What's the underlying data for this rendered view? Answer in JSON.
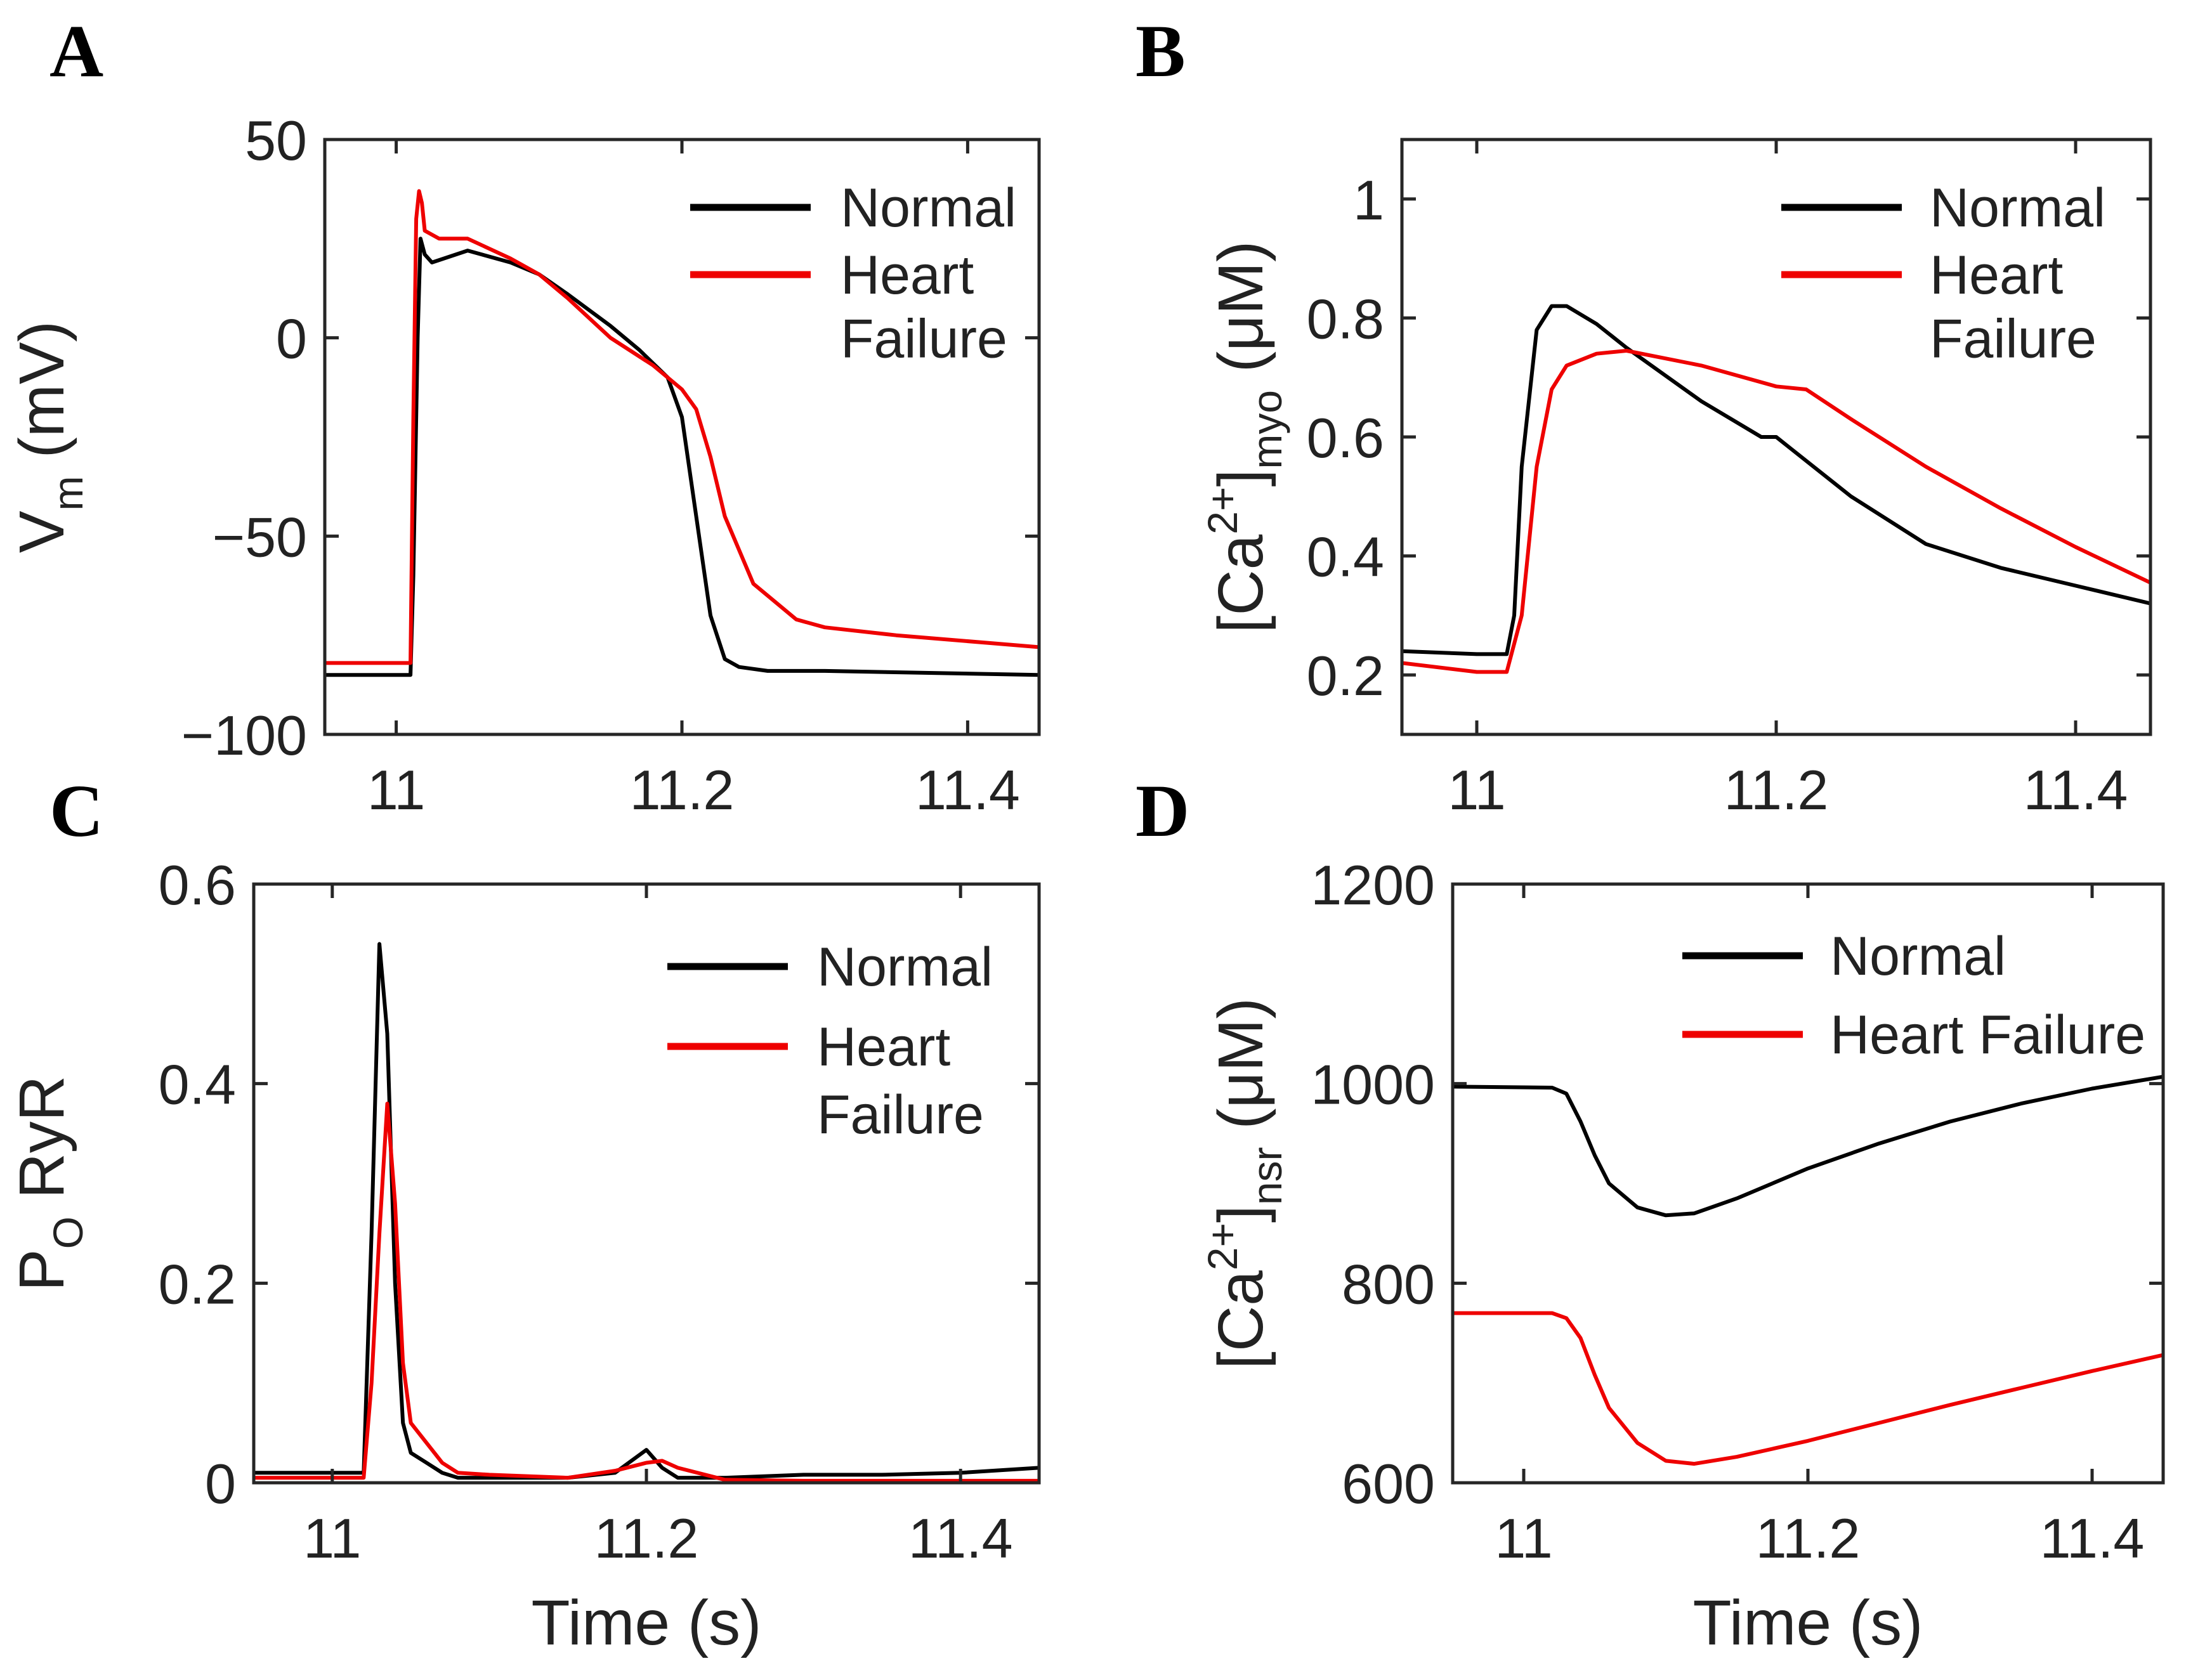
{
  "chart_data": [
    {
      "panel": "A",
      "type": "line",
      "ylabel_main": "V",
      "ylabel_sub": "m",
      "ylabel_rest": " (mV)",
      "xlabel": "",
      "xlim": [
        10.95,
        11.45
      ],
      "ylim": [
        -100,
        50
      ],
      "xticks": [
        11,
        11.2,
        11.4
      ],
      "xtick_labels": [
        "11",
        "11.2",
        "11.4"
      ],
      "yticks": [
        -100,
        -50,
        0,
        50
      ],
      "ytick_labels": [
        "−100",
        "−50",
        "0",
        "50"
      ],
      "legend": [
        "Normal",
        "Heart",
        "Failure"
      ],
      "series": [
        {
          "name": "Normal",
          "color": "#000000",
          "x": [
            10.95,
            11.01,
            11.012,
            11.015,
            11.017,
            11.02,
            11.025,
            11.05,
            11.08,
            11.1,
            11.12,
            11.15,
            11.17,
            11.19,
            11.2,
            11.21,
            11.22,
            11.23,
            11.24,
            11.26,
            11.3,
            11.45
          ],
          "y": [
            -85,
            -85,
            -60,
            0,
            25,
            21,
            19,
            22,
            19,
            16,
            11,
            3,
            -3,
            -10,
            -20,
            -45,
            -70,
            -81,
            -83,
            -84,
            -84,
            -85
          ]
        },
        {
          "name": "Heart Failure",
          "color": "#ee0000",
          "x": [
            10.95,
            11.01,
            11.012,
            11.014,
            11.016,
            11.018,
            11.02,
            11.03,
            11.05,
            11.08,
            11.1,
            11.12,
            11.15,
            11.18,
            11.2,
            11.21,
            11.22,
            11.23,
            11.25,
            11.28,
            11.3,
            11.35,
            11.45
          ],
          "y": [
            -82,
            -82,
            -20,
            30,
            37,
            34,
            27,
            25,
            25,
            20,
            16,
            10,
            0,
            -7,
            -13,
            -18,
            -30,
            -45,
            -62,
            -71,
            -73,
            -75,
            -78
          ]
        }
      ]
    },
    {
      "panel": "B",
      "type": "line",
      "ylabel_main": "[Ca",
      "ylabel_sup": "2+",
      "ylabel_mid": "]",
      "ylabel_sub": "myo",
      "ylabel_rest": " (μM)",
      "xlabel": "",
      "xlim": [
        10.95,
        11.45
      ],
      "ylim": [
        0.1,
        1.1
      ],
      "xticks": [
        11,
        11.2,
        11.4
      ],
      "xtick_labels": [
        "11",
        "11.2",
        "11.4"
      ],
      "yticks": [
        0.2,
        0.4,
        0.6,
        0.8,
        1
      ],
      "ytick_labels": [
        "0.2",
        "0.4",
        "0.6",
        "0.8",
        "1"
      ],
      "legend": [
        "Normal",
        "Heart",
        "Failure"
      ],
      "series": [
        {
          "name": "Normal",
          "color": "#000000",
          "x": [
            10.95,
            11.0,
            11.02,
            11.025,
            11.03,
            11.04,
            11.05,
            11.06,
            11.08,
            11.1,
            11.15,
            11.19,
            11.2,
            11.21,
            11.25,
            11.3,
            11.35,
            11.4,
            11.45
          ],
          "y": [
            0.24,
            0.235,
            0.235,
            0.3,
            0.55,
            0.78,
            0.82,
            0.82,
            0.79,
            0.75,
            0.66,
            0.6,
            0.6,
            0.58,
            0.5,
            0.42,
            0.38,
            0.35,
            0.32
          ]
        },
        {
          "name": "Heart Failure",
          "color": "#ee0000",
          "x": [
            10.95,
            11.0,
            11.02,
            11.03,
            11.04,
            11.05,
            11.06,
            11.08,
            11.1,
            11.15,
            11.2,
            11.22,
            11.25,
            11.3,
            11.35,
            11.4,
            11.45
          ],
          "y": [
            0.22,
            0.205,
            0.205,
            0.3,
            0.55,
            0.68,
            0.72,
            0.74,
            0.745,
            0.72,
            0.685,
            0.68,
            0.63,
            0.55,
            0.48,
            0.415,
            0.355
          ]
        }
      ]
    },
    {
      "panel": "C",
      "type": "line",
      "ylabel_main": "P",
      "ylabel_sub": "O",
      "ylabel_rest": " RyR",
      "xlabel": "Time (s)",
      "xlim": [
        10.95,
        11.45
      ],
      "ylim": [
        0,
        0.6
      ],
      "xticks": [
        11,
        11.2,
        11.4
      ],
      "xtick_labels": [
        "11",
        "11.2",
        "11.4"
      ],
      "yticks": [
        0,
        0.2,
        0.4,
        0.6
      ],
      "ytick_labels": [
        "0",
        "0.2",
        "0.4",
        "0.6"
      ],
      "legend": [
        "Normal",
        "Heart",
        "Failure"
      ],
      "series": [
        {
          "name": "Normal",
          "color": "#000000",
          "x": [
            10.95,
            11.0,
            11.02,
            11.025,
            11.03,
            11.035,
            11.04,
            11.045,
            11.05,
            11.06,
            11.07,
            11.08,
            11.1,
            11.15,
            11.18,
            11.2,
            11.21,
            11.22,
            11.25,
            11.3,
            11.35,
            11.4,
            11.45
          ],
          "y": [
            0.01,
            0.01,
            0.01,
            0.25,
            0.54,
            0.45,
            0.2,
            0.06,
            0.03,
            0.02,
            0.01,
            0.005,
            0.005,
            0.005,
            0.01,
            0.033,
            0.015,
            0.005,
            0.005,
            0.008,
            0.008,
            0.01,
            0.015
          ]
        },
        {
          "name": "Heart Failure",
          "color": "#ee0000",
          "x": [
            10.95,
            11.0,
            11.02,
            11.025,
            11.03,
            11.035,
            11.04,
            11.045,
            11.05,
            11.06,
            11.07,
            11.08,
            11.1,
            11.15,
            11.18,
            11.2,
            11.21,
            11.22,
            11.25,
            11.3,
            11.35,
            11.4,
            11.45
          ],
          "y": [
            0.005,
            0.005,
            0.005,
            0.1,
            0.25,
            0.38,
            0.28,
            0.12,
            0.06,
            0.04,
            0.02,
            0.01,
            0.008,
            0.005,
            0.012,
            0.02,
            0.022,
            0.015,
            0.003,
            0.002,
            0.002,
            0.002,
            0.002
          ]
        }
      ]
    },
    {
      "panel": "D",
      "type": "line",
      "ylabel_main": "[Ca",
      "ylabel_sup": "2+",
      "ylabel_mid": "]",
      "ylabel_sub": "nsr",
      "ylabel_rest": " (μM)",
      "xlabel": "Time (s)",
      "xlim": [
        10.95,
        11.45
      ],
      "ylim": [
        600,
        1200
      ],
      "xticks": [
        11,
        11.2,
        11.4
      ],
      "xtick_labels": [
        "11",
        "11.2",
        "11.4"
      ],
      "yticks": [
        600,
        800,
        1000,
        1200
      ],
      "ytick_labels": [
        "600",
        "800",
        "1000",
        "1200"
      ],
      "legend": [
        "Normal",
        "Heart Failure"
      ],
      "series": [
        {
          "name": "Normal",
          "color": "#000000",
          "x": [
            10.95,
            11.02,
            11.03,
            11.04,
            11.05,
            11.06,
            11.08,
            11.1,
            11.12,
            11.15,
            11.2,
            11.25,
            11.3,
            11.35,
            11.4,
            11.45
          ],
          "y": [
            997,
            996,
            990,
            962,
            928,
            900,
            876,
            868,
            870,
            885,
            915,
            940,
            962,
            980,
            995,
            1007
          ]
        },
        {
          "name": "Heart Failure",
          "color": "#ee0000",
          "x": [
            10.95,
            11.02,
            11.03,
            11.04,
            11.05,
            11.06,
            11.08,
            11.1,
            11.12,
            11.15,
            11.2,
            11.25,
            11.3,
            11.35,
            11.4,
            11.45
          ],
          "y": [
            770,
            770,
            765,
            745,
            708,
            675,
            640,
            622,
            619,
            626,
            642,
            660,
            678,
            695,
            712,
            728
          ]
        }
      ]
    }
  ]
}
